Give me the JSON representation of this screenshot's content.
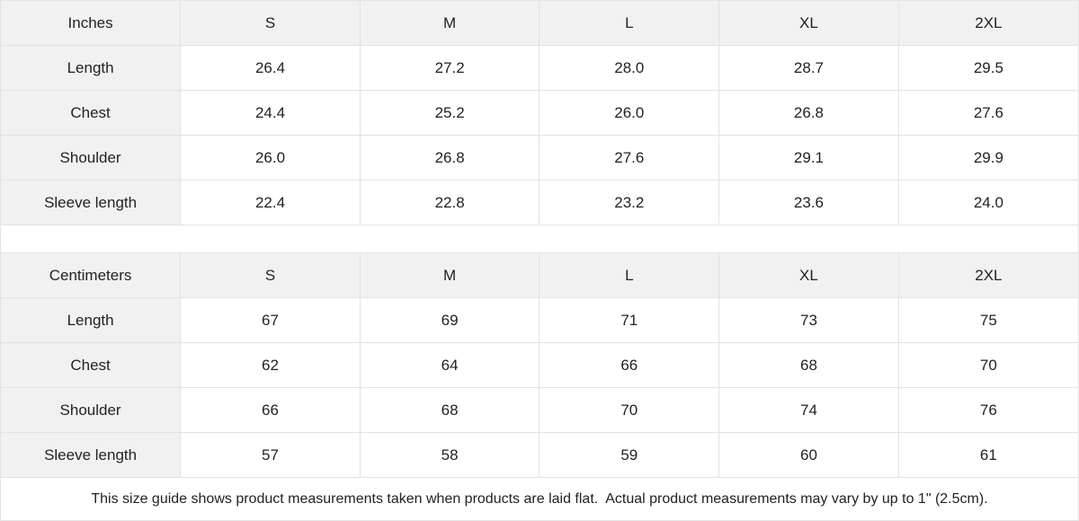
{
  "tables": [
    {
      "unit_label": "Inches",
      "sizes": [
        "S",
        "M",
        "L",
        "XL",
        "2XL"
      ],
      "rows": [
        {
          "label": "Length",
          "values": [
            "26.4",
            "27.2",
            "28.0",
            "28.7",
            "29.5"
          ]
        },
        {
          "label": "Chest",
          "values": [
            "24.4",
            "25.2",
            "26.0",
            "26.8",
            "27.6"
          ]
        },
        {
          "label": "Shoulder",
          "values": [
            "26.0",
            "26.8",
            "27.6",
            "29.1",
            "29.9"
          ]
        },
        {
          "label": "Sleeve length",
          "values": [
            "22.4",
            "22.8",
            "23.2",
            "23.6",
            "24.0"
          ]
        }
      ]
    },
    {
      "unit_label": "Centimeters",
      "sizes": [
        "S",
        "M",
        "L",
        "XL",
        "2XL"
      ],
      "rows": [
        {
          "label": "Length",
          "values": [
            "67",
            "69",
            "71",
            "73",
            "75"
          ]
        },
        {
          "label": "Chest",
          "values": [
            "62",
            "64",
            "66",
            "68",
            "70"
          ]
        },
        {
          "label": "Shoulder",
          "values": [
            "66",
            "68",
            "70",
            "74",
            "76"
          ]
        },
        {
          "label": "Sleeve length",
          "values": [
            "57",
            "58",
            "59",
            "60",
            "61"
          ]
        }
      ]
    }
  ],
  "footer": {
    "note": "This size guide shows product measurements taken when products are laid flat.  Actual product measurements may vary by up to 1\" (2.5cm)."
  },
  "colors": {
    "header_bg": "#f1f1f1",
    "border": "#e2e2e2",
    "text": "#222222",
    "cell_bg": "#ffffff"
  }
}
